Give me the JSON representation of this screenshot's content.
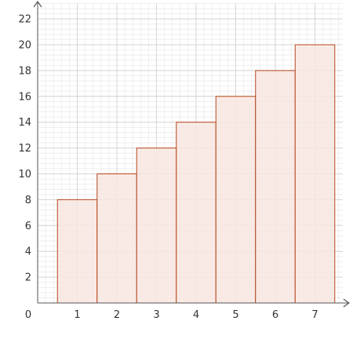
{
  "chart_data": {
    "type": "bar",
    "categories": [
      "1",
      "2",
      "3",
      "4",
      "5",
      "6",
      "7"
    ],
    "values": [
      8,
      10,
      12,
      14,
      16,
      18,
      20
    ],
    "x_ticks": [
      "0",
      "1",
      "2",
      "3",
      "4",
      "5",
      "6",
      "7"
    ],
    "y_ticks": [
      "2",
      "4",
      "6",
      "8",
      "10",
      "12",
      "14",
      "16",
      "18",
      "20",
      "22"
    ],
    "xlim": [
      0,
      7.7
    ],
    "ylim": [
      0,
      23.2
    ],
    "grid": true,
    "title": "",
    "xlabel": "",
    "ylabel": "",
    "colors": {
      "bar_fill": "#f8e6e0",
      "bar_stroke": "#b5471f",
      "grid_major": "#d6d6d6",
      "grid_minor": "#eeeeee",
      "axis": "#555555"
    }
  }
}
